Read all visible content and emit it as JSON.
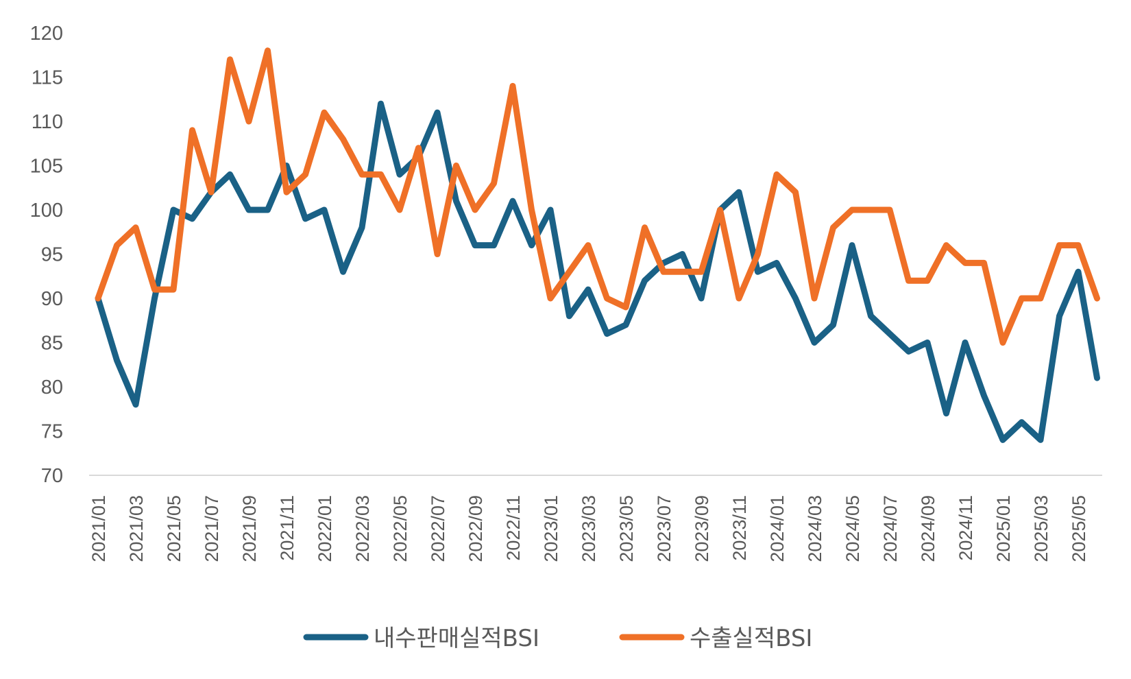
{
  "chart_data": {
    "type": "line",
    "title": "",
    "xlabel": "",
    "ylabel": "",
    "ylim": [
      70,
      120
    ],
    "yticks": [
      "70",
      "75",
      "80",
      "85",
      "90",
      "95",
      "100",
      "105",
      "110",
      "115",
      "120"
    ],
    "grid": false,
    "legend_position": "bottom",
    "x": [
      "2021/01",
      "2021/02",
      "2021/03",
      "2021/04",
      "2021/05",
      "2021/06",
      "2021/07",
      "2021/08",
      "2021/09",
      "2021/10",
      "2021/11",
      "2021/12",
      "2022/01",
      "2022/02",
      "2022/03",
      "2022/04",
      "2022/05",
      "2022/06",
      "2022/07",
      "2022/08",
      "2022/09",
      "2022/10",
      "2022/11",
      "2022/12",
      "2023/01",
      "2023/02",
      "2023/03",
      "2023/04",
      "2023/05",
      "2023/06",
      "2023/07",
      "2023/08",
      "2023/09",
      "2023/10",
      "2023/11",
      "2023/12",
      "2024/01",
      "2024/02",
      "2024/03",
      "2024/04",
      "2024/05",
      "2024/06",
      "2024/07",
      "2024/08",
      "2024/09",
      "2024/10",
      "2024/11",
      "2024/12",
      "2025/01",
      "2025/02",
      "2025/03",
      "2025/04",
      "2025/05",
      "2025/06"
    ],
    "xtick_labels": [
      "2021/01",
      "2021/03",
      "2021/05",
      "2021/07",
      "2021/09",
      "2021/11",
      "2022/01",
      "2022/03",
      "2022/05",
      "2022/07",
      "2022/09",
      "2022/11",
      "2023/01",
      "2023/03",
      "2023/05",
      "2023/07",
      "2023/09",
      "2023/11",
      "2024/01",
      "2024/03",
      "2024/05",
      "2024/07",
      "2024/09",
      "2024/11",
      "2025/01",
      "2025/03",
      "2025/05"
    ],
    "series": [
      {
        "name": "내수판매실적BSI",
        "color": "#1a6186",
        "values": [
          90,
          83,
          78,
          90,
          100,
          99,
          102,
          104,
          100,
          100,
          105,
          99,
          100,
          93,
          98,
          112,
          104,
          106,
          111,
          101,
          96,
          96,
          101,
          96,
          100,
          88,
          91,
          86,
          87,
          92,
          94,
          95,
          90,
          100,
          102,
          93,
          94,
          90,
          85,
          87,
          96,
          88,
          86,
          84,
          85,
          77,
          85,
          79,
          74,
          76,
          74,
          88,
          93,
          81
        ]
      },
      {
        "name": "수출실적BSI",
        "color": "#ef7027",
        "values": [
          90,
          96,
          98,
          91,
          91,
          109,
          102,
          117,
          110,
          118,
          102,
          104,
          111,
          108,
          104,
          104,
          100,
          107,
          95,
          105,
          100,
          103,
          114,
          100,
          90,
          93,
          96,
          90,
          89,
          98,
          93,
          93,
          93,
          100,
          90,
          95,
          104,
          102,
          90,
          98,
          100,
          100,
          100,
          92,
          92,
          96,
          94,
          94,
          85,
          90,
          90,
          96,
          96,
          90
        ]
      }
    ]
  }
}
